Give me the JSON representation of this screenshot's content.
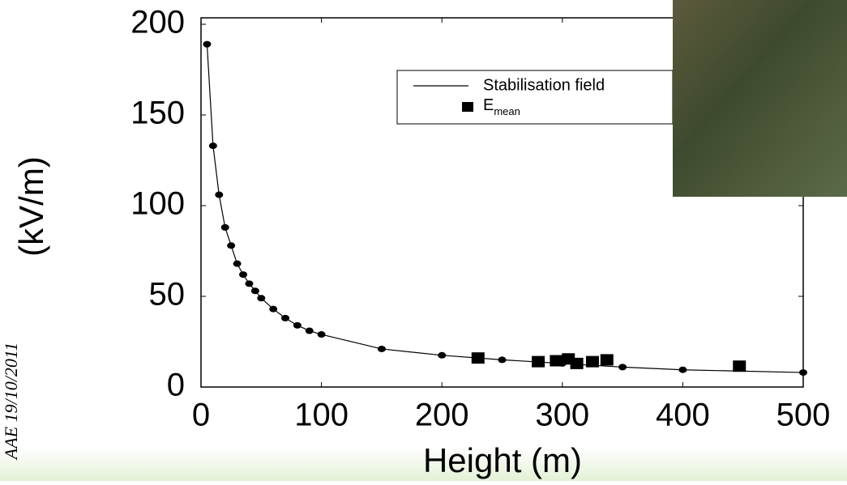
{
  "footer_note": "AAE 19/10/2011",
  "chart_data": {
    "type": "line",
    "x_label": "Height (m)",
    "y_label": "(kV/m)",
    "xlim": [
      0,
      500
    ],
    "xticks": [
      0,
      100,
      200,
      300,
      400,
      500
    ],
    "ylim": [
      0,
      200
    ],
    "yticks": [
      0,
      50,
      100,
      150,
      200
    ],
    "series": [
      {
        "name": "Stabilisation field",
        "color": "#000000",
        "style": "line-with-dots",
        "x": [
          5,
          10,
          15,
          20,
          25,
          30,
          35,
          40,
          45,
          50,
          60,
          70,
          80,
          90,
          100,
          150,
          200,
          250,
          300,
          350,
          400,
          500
        ],
        "values": [
          189,
          133,
          106,
          88,
          78,
          68,
          62,
          57,
          53,
          49,
          43,
          38,
          34,
          31,
          29,
          21,
          17.5,
          15,
          13,
          11,
          9.5,
          8
        ]
      },
      {
        "name": "E",
        "subscript": "mean",
        "color": "#000000",
        "style": "squares",
        "x": [
          230,
          280,
          295,
          305,
          312,
          325,
          337,
          447
        ],
        "values": [
          16,
          14,
          14.5,
          15.5,
          13,
          14,
          15,
          11.5
        ]
      }
    ]
  }
}
